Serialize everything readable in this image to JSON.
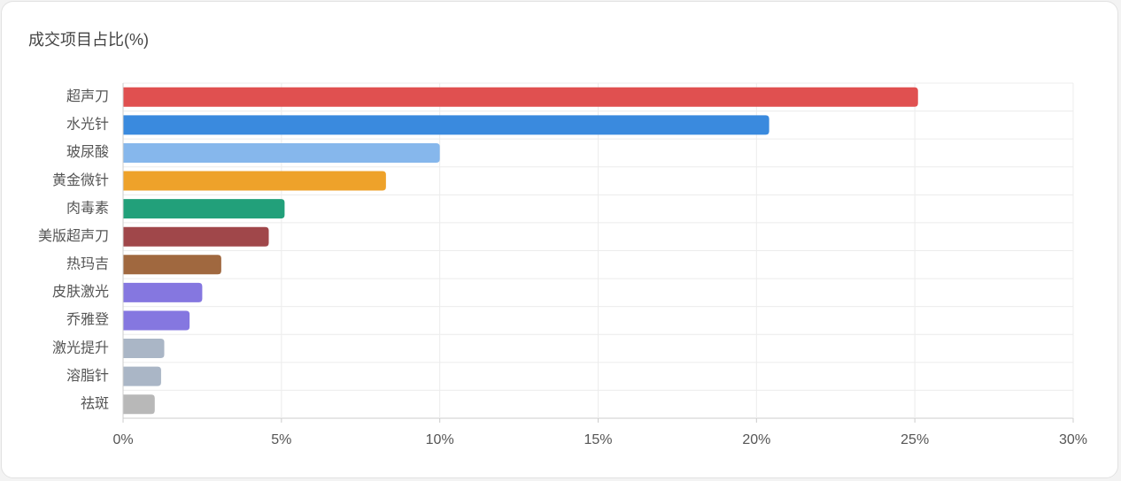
{
  "chart_data": {
    "type": "bar",
    "orientation": "horizontal",
    "title": "成交项目占比(%)",
    "categories": [
      "超声刀",
      "水光针",
      "玻尿酸",
      "黄金微针",
      "肉毒素",
      "美版超声刀",
      "热玛吉",
      "皮肤激光",
      "乔雅登",
      "激光提升",
      "溶脂针",
      "祛斑"
    ],
    "values": [
      25.1,
      20.4,
      10.0,
      8.3,
      5.1,
      4.6,
      3.1,
      2.5,
      2.1,
      1.3,
      1.2,
      1.0
    ],
    "colors": [
      "#e05050",
      "#3a8ade",
      "#86b7ec",
      "#eea22a",
      "#22a07a",
      "#a0474a",
      "#a0683f",
      "#8577e0",
      "#8577e0",
      "#aab6c6",
      "#aab6c6",
      "#b8b8b8"
    ],
    "xlim": [
      0,
      30
    ],
    "xticks": [
      {
        "value": 0,
        "label": "0%"
      },
      {
        "value": 5,
        "label": "5%"
      },
      {
        "value": 10,
        "label": "10%"
      },
      {
        "value": 15,
        "label": "15%"
      },
      {
        "value": 20,
        "label": "20%"
      },
      {
        "value": 25,
        "label": "25%"
      },
      {
        "value": 30,
        "label": "30%"
      }
    ],
    "grid": true
  }
}
